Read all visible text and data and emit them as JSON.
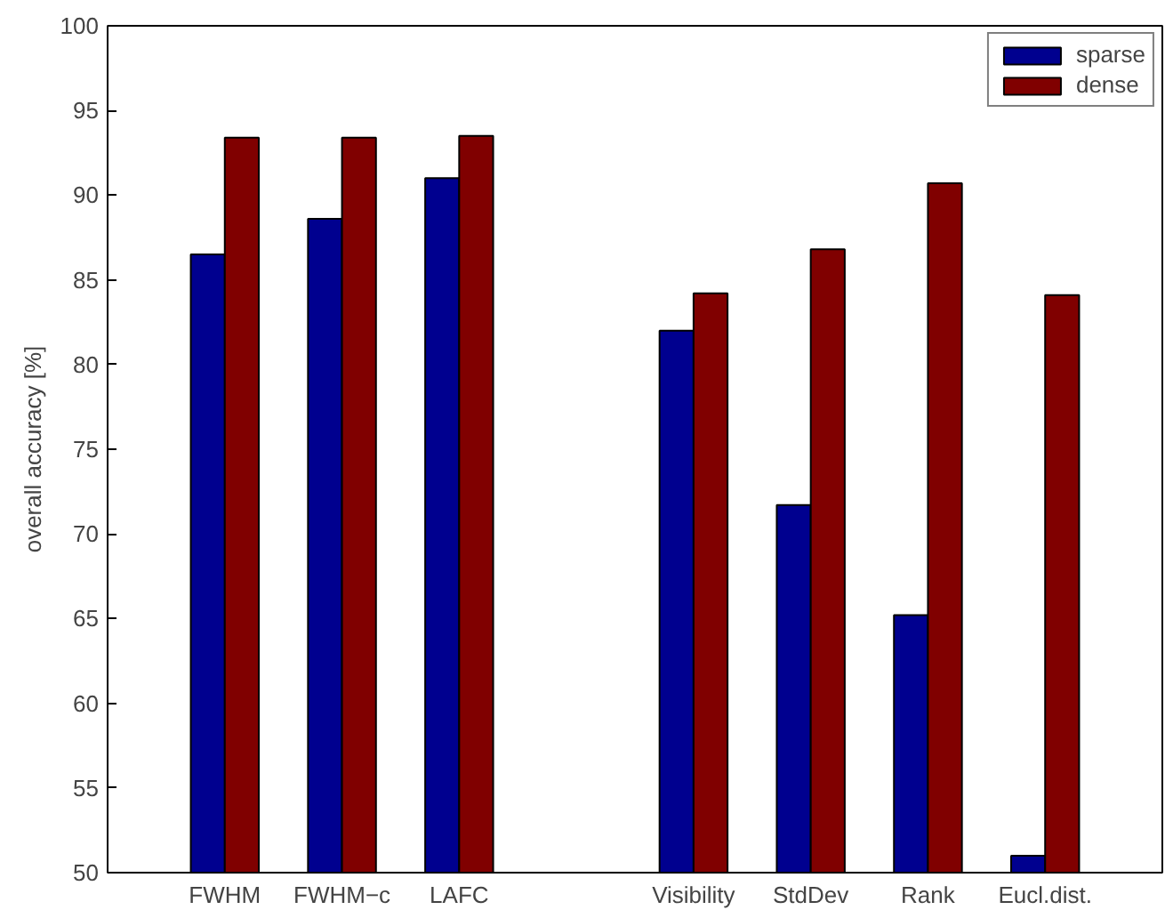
{
  "chart_data": {
    "type": "bar",
    "ylabel": "overall accuracy [%]",
    "categories": [
      "FWHM",
      "FWHM−c",
      "LAFC",
      null,
      "Visibility",
      "StdDev",
      "Rank",
      "Eucl.dist."
    ],
    "series": [
      {
        "name": "sparse",
        "color": "#00008f",
        "values": [
          86.5,
          88.6,
          91.0,
          null,
          82.0,
          71.7,
          65.2,
          51.0
        ]
      },
      {
        "name": "dense",
        "color": "#800000",
        "values": [
          93.4,
          93.4,
          93.5,
          null,
          84.2,
          86.8,
          90.7,
          84.1
        ]
      }
    ],
    "ylim": [
      50,
      100
    ],
    "yticks": [
      50,
      55,
      60,
      65,
      70,
      75,
      80,
      85,
      90,
      95,
      100
    ],
    "grid": false,
    "legend": "top right"
  }
}
